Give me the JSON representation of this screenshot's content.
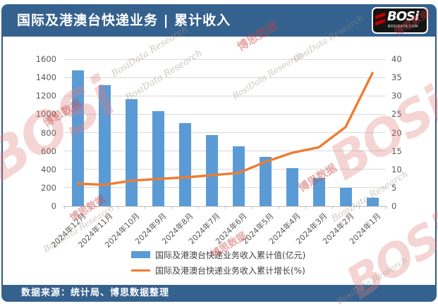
{
  "header": {
    "title": "国际及港澳台快递业务 | 累计收入",
    "logo": {
      "text": "BOSi",
      "subtext": "BOSIDATA.COM"
    }
  },
  "footer": {
    "source_label": "数据来源：统计局、博思数据整理"
  },
  "watermark": {
    "brand": "BOSi",
    "cn": "博思数据",
    "en": "BosiData Research"
  },
  "colors": {
    "header_bg": "#35618e",
    "bar": "#5b9bd5",
    "line": "#ed7d31",
    "grid": "#d9d9d9",
    "axis_text": "#595959",
    "logo_red": "#c00000"
  },
  "chart_data": {
    "type": "bar",
    "subtype": "bar-line-combo",
    "categories": [
      "2024年12月",
      "2024年11月",
      "2024年10月",
      "2024年9月",
      "2024年8月",
      "2024年7月",
      "2024年6月",
      "2024年5月",
      "2024年4月",
      "2024年3月",
      "2024年2月",
      "2024年1月"
    ],
    "series": [
      {
        "name": "国际及港澳台快递业务收入累计值(亿元)",
        "type": "bar",
        "axis": "left",
        "color": "#5b9bd5",
        "values": [
          1480,
          1320,
          1165,
          1030,
          900,
          775,
          650,
          535,
          415,
          305,
          198,
          92
        ]
      },
      {
        "name": "国际及港澳台快递业务收入累计增长(%)",
        "type": "line",
        "axis": "right",
        "color": "#ed7d31",
        "values": [
          6.1,
          5.8,
          6.9,
          7.4,
          7.8,
          8.4,
          9.0,
          12.0,
          14.5,
          16.0,
          21.5,
          36.2
        ]
      }
    ],
    "left_axis": {
      "min": 0,
      "max": 1600,
      "step": 200,
      "ticks": [
        "0",
        "200",
        "400",
        "600",
        "800",
        "1000",
        "1200",
        "1400",
        "1600"
      ]
    },
    "right_axis": {
      "min": 0,
      "max": 40,
      "step": 5,
      "ticks": [
        "0",
        "5",
        "10",
        "15",
        "20",
        "25",
        "30",
        "35",
        "40"
      ]
    },
    "grid": true,
    "legend_position": "bottom"
  }
}
